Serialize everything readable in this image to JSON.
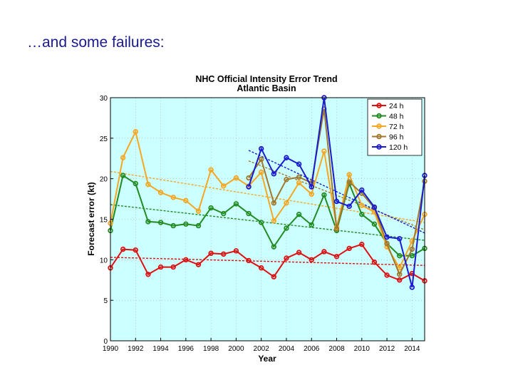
{
  "slide": {
    "heading": "…and some failures:"
  },
  "chart_data": {
    "type": "line",
    "title": "NHC Official Intensity Error Trend",
    "subtitle": "Atlantic Basin",
    "xlabel": "Year",
    "ylabel": "Forecast error (kt)",
    "xlim": [
      1990,
      2015
    ],
    "ylim": [
      0,
      30
    ],
    "xticks": [
      1990,
      1992,
      1994,
      1996,
      1998,
      2000,
      2002,
      2004,
      2006,
      2008,
      2010,
      2012,
      2014
    ],
    "yticks": [
      0,
      5,
      10,
      15,
      20,
      25,
      30
    ],
    "legend_position": "top-right",
    "background_color": "#ccffff",
    "series": [
      {
        "name": "24 h",
        "color": "#dd1111",
        "x": [
          1990,
          1991,
          1992,
          1993,
          1994,
          1995,
          1996,
          1997,
          1998,
          1999,
          2000,
          2001,
          2002,
          2003,
          2004,
          2005,
          2006,
          2007,
          2008,
          2009,
          2010,
          2011,
          2012,
          2013,
          2014,
          2015
        ],
        "values": [
          9.0,
          11.3,
          11.2,
          8.2,
          9.1,
          9.1,
          10.0,
          9.4,
          10.8,
          10.7,
          11.1,
          9.9,
          9.0,
          7.9,
          10.2,
          10.9,
          10.0,
          11.0,
          10.4,
          11.4,
          11.9,
          9.7,
          8.1,
          7.5,
          8.3,
          7.4
        ],
        "trend": [
          10.3,
          9.3
        ]
      },
      {
        "name": "48 h",
        "color": "#228b22",
        "x": [
          1990,
          1991,
          1992,
          1993,
          1994,
          1995,
          1996,
          1997,
          1998,
          1999,
          2000,
          2001,
          2002,
          2003,
          2004,
          2005,
          2006,
          2007,
          2008,
          2009,
          2010,
          2011,
          2012,
          2013,
          2014,
          2015
        ],
        "values": [
          13.6,
          20.4,
          19.4,
          14.7,
          14.6,
          14.2,
          14.4,
          14.2,
          16.4,
          15.7,
          16.9,
          15.7,
          14.6,
          11.6,
          13.9,
          15.6,
          14.3,
          18.0,
          13.6,
          19.4,
          15.6,
          14.4,
          12.0,
          10.5,
          10.5,
          11.4
        ],
        "trend": [
          16.8,
          12.4
        ]
      },
      {
        "name": "72 h",
        "color": "#f5a623",
        "x": [
          1990,
          1991,
          1992,
          1993,
          1994,
          1995,
          1996,
          1997,
          1998,
          1999,
          2000,
          2001,
          2002,
          2003,
          2004,
          2005,
          2006,
          2007,
          2008,
          2009,
          2010,
          2011,
          2012,
          2013,
          2014,
          2015
        ],
        "values": [
          14.5,
          22.6,
          25.8,
          19.3,
          18.3,
          17.7,
          17.3,
          16.0,
          21.1,
          19.1,
          20.1,
          19.1,
          20.8,
          14.8,
          17.0,
          19.5,
          18.1,
          23.4,
          14.0,
          20.5,
          16.7,
          15.9,
          11.6,
          9.0,
          12.3,
          15.6
        ],
        "trend": [
          20.9,
          14.6
        ]
      },
      {
        "name": "96 h",
        "color": "#a0782d",
        "x": [
          2001,
          2002,
          2003,
          2004,
          2005,
          2006,
          2007,
          2008,
          2009,
          2010,
          2011,
          2012,
          2013,
          2014,
          2015
        ],
        "values": [
          20.1,
          22.4,
          17.0,
          19.9,
          20.2,
          19.5,
          28.6,
          13.8,
          19.6,
          18.2,
          16.4,
          12.0,
          8.2,
          11.3,
          19.7
        ],
        "trend": [
          22.2,
          13.7
        ]
      },
      {
        "name": "120 h",
        "color": "#1a1ad0",
        "x": [
          2001,
          2002,
          2003,
          2004,
          2005,
          2006,
          2007,
          2008,
          2009,
          2010,
          2011,
          2012,
          2013,
          2014,
          2015
        ],
        "values": [
          19.0,
          23.7,
          20.6,
          22.6,
          21.8,
          19.0,
          30.0,
          17.2,
          16.6,
          18.6,
          16.5,
          12.8,
          12.6,
          6.6,
          20.4
        ],
        "trend": [
          23.5,
          13.3
        ]
      }
    ]
  }
}
